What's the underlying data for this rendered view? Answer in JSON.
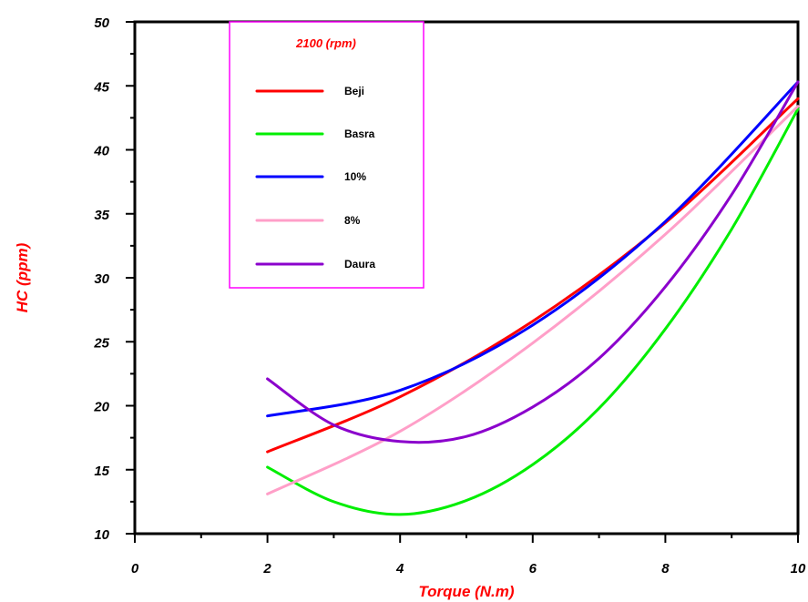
{
  "chart_data": {
    "type": "line",
    "title": "",
    "xlabel": "Torque (N.m)",
    "ylabel": "HC (ppm)",
    "xlim": [
      0,
      10
    ],
    "ylim": [
      10,
      50
    ],
    "x_ticks": [
      0,
      2,
      4,
      6,
      8,
      10
    ],
    "x_tick_labels": [
      "0",
      "2",
      "4",
      "6",
      "8",
      "10"
    ],
    "y_ticks": [
      10,
      15,
      20,
      25,
      30,
      35,
      40,
      45,
      50
    ],
    "y_tick_labels": [
      "10",
      "15",
      "20",
      "25",
      "30",
      "35",
      "40",
      "45",
      "50"
    ],
    "grid": false,
    "legend": {
      "title": "2100 (rpm)",
      "placement": "top-left"
    },
    "series": [
      {
        "name": "Beji",
        "color": "#ff0000",
        "x": [
          2,
          4,
          6,
          8,
          10
        ],
        "y": [
          16.4,
          20.7,
          26.6,
          34.3,
          44.0
        ]
      },
      {
        "name": "Basra",
        "color": "#00ee00",
        "x": [
          2,
          3,
          4,
          5,
          6,
          7,
          8,
          9,
          10
        ],
        "y": [
          15.2,
          12.5,
          11.5,
          12.6,
          15.4,
          19.8,
          26.0,
          33.8,
          43.2
        ]
      },
      {
        "name": "10%",
        "color": "#0000ff",
        "x": [
          2,
          4,
          6,
          8,
          10
        ],
        "y": [
          19.2,
          21.2,
          26.3,
          34.4,
          45.3
        ]
      },
      {
        "name": "8%",
        "color": "#ff9fc8",
        "x": [
          2,
          4,
          6,
          8,
          10
        ],
        "y": [
          13.1,
          18.0,
          24.9,
          33.4,
          43.4
        ]
      },
      {
        "name": "Daura",
        "color": "#8b00cc",
        "x": [
          2,
          3,
          4,
          5,
          6,
          7,
          8,
          9,
          10
        ],
        "y": [
          22.1,
          18.5,
          17.2,
          17.6,
          19.9,
          23.7,
          29.3,
          36.5,
          45.3
        ]
      }
    ]
  }
}
